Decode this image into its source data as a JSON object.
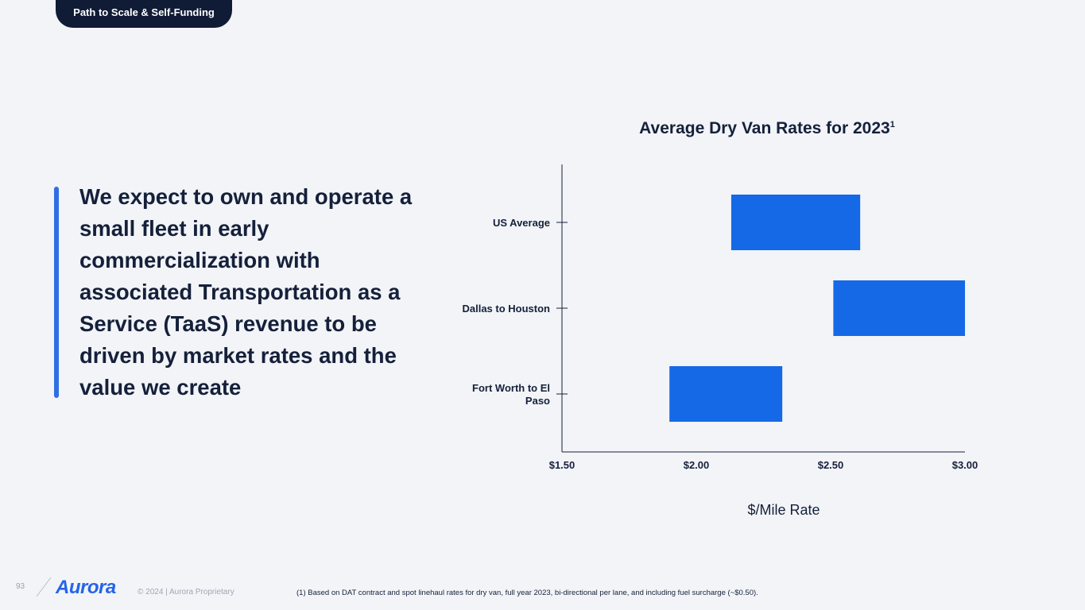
{
  "header": {
    "section_label": "Path to Scale & Self-Funding"
  },
  "headline": "We expect to own and operate a small fleet in early commercialization with associated Transportation as a Service (TaaS) revenue to be driven by market rates and the value we create",
  "colors": {
    "bar": "#1569e6",
    "accent": "#2f6fe4",
    "tab_bg": "#101b35",
    "text": "#15203a"
  },
  "chart_data": {
    "type": "bar",
    "orientation": "horizontal-range",
    "title": "Average Dry Van Rates for 2023",
    "title_superscript": "1",
    "xlabel": "$/Mile Rate",
    "ylabel": "",
    "categories": [
      "US Average",
      "Dallas to Houston",
      "Fort Worth to El Paso"
    ],
    "ranges": [
      {
        "category": "US Average",
        "low": 2.13,
        "high": 2.61
      },
      {
        "category": "Dallas to Houston",
        "low": 2.51,
        "high": 3.0
      },
      {
        "category": "Fort Worth to El Paso",
        "low": 1.9,
        "high": 2.32
      }
    ],
    "xlim": [
      1.5,
      3.0
    ],
    "xticks": [
      1.5,
      2.0,
      2.5,
      3.0
    ],
    "xtick_labels": [
      "$1.50",
      "$2.00",
      "$2.50",
      "$3.00"
    ],
    "grid": false,
    "legend": "none"
  },
  "footer": {
    "page_number": "93",
    "logo": "Aurora",
    "copyright": "© 2024 | Aurora Proprietary",
    "footnote": "(1) Based on DAT contract and spot linehaul rates for dry van, full year 2023, bi-directional per lane, and including fuel surcharge (~$0.50)."
  }
}
